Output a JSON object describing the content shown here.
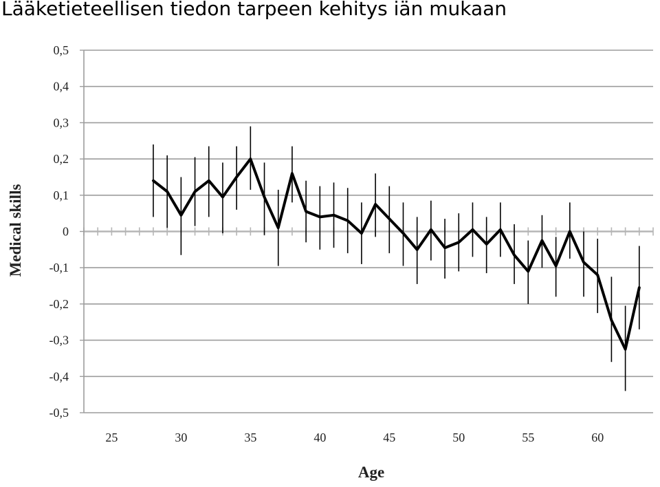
{
  "title": "Lääketieteellisen tiedon tarpeen kehitys iän mukaan",
  "chart_data": {
    "type": "line",
    "xlabel": "Age",
    "ylabel": "Medical skills",
    "xlim": [
      23,
      64
    ],
    "ylim": [
      -0.5,
      0.5
    ],
    "x_ticks": [
      25,
      30,
      35,
      40,
      45,
      50,
      55,
      60
    ],
    "x_tick_labels": [
      "25",
      "30",
      "35",
      "40",
      "45",
      "50",
      "55",
      "60"
    ],
    "y_ticks": [
      0.5,
      0.4,
      0.3,
      0.2,
      0.1,
      0,
      -0.1,
      -0.2,
      -0.3,
      -0.4,
      -0.5
    ],
    "y_tick_labels": [
      "0,5",
      "0,4",
      "0,3",
      "0,2",
      "0,1",
      "0",
      "-0,1",
      "-0,2",
      "-0,3",
      "-0,4",
      "-0,5"
    ],
    "grid": true,
    "error_bars": true,
    "series": [
      {
        "color": "#000000",
        "points": [
          {
            "x": 28,
            "y": 0.14,
            "low": 0.04,
            "high": 0.24
          },
          {
            "x": 29,
            "y": 0.11,
            "low": 0.01,
            "high": 0.21
          },
          {
            "x": 30,
            "y": 0.045,
            "low": -0.065,
            "high": 0.15
          },
          {
            "x": 31,
            "y": 0.11,
            "low": 0.015,
            "high": 0.205
          },
          {
            "x": 32,
            "y": 0.14,
            "low": 0.04,
            "high": 0.235
          },
          {
            "x": 33,
            "y": 0.095,
            "low": -0.005,
            "high": 0.19
          },
          {
            "x": 34,
            "y": 0.15,
            "low": 0.06,
            "high": 0.235
          },
          {
            "x": 35,
            "y": 0.2,
            "low": 0.115,
            "high": 0.29
          },
          {
            "x": 36,
            "y": 0.095,
            "low": -0.01,
            "high": 0.19
          },
          {
            "x": 37,
            "y": 0.01,
            "low": -0.095,
            "high": 0.115
          },
          {
            "x": 38,
            "y": 0.16,
            "low": 0.08,
            "high": 0.235
          },
          {
            "x": 39,
            "y": 0.055,
            "low": -0.03,
            "high": 0.14
          },
          {
            "x": 40,
            "y": 0.04,
            "low": -0.05,
            "high": 0.125
          },
          {
            "x": 41,
            "y": 0.045,
            "low": -0.045,
            "high": 0.135
          },
          {
            "x": 42,
            "y": 0.03,
            "low": -0.06,
            "high": 0.12
          },
          {
            "x": 43,
            "y": -0.005,
            "low": -0.09,
            "high": 0.08
          },
          {
            "x": 44,
            "y": 0.075,
            "low": -0.015,
            "high": 0.16
          },
          {
            "x": 45,
            "y": 0.035,
            "low": -0.06,
            "high": 0.125
          },
          {
            "x": 46,
            "y": -0.005,
            "low": -0.095,
            "high": 0.08
          },
          {
            "x": 47,
            "y": -0.05,
            "low": -0.145,
            "high": 0.04
          },
          {
            "x": 48,
            "y": 0.005,
            "low": -0.08,
            "high": 0.085
          },
          {
            "x": 49,
            "y": -0.045,
            "low": -0.13,
            "high": 0.035
          },
          {
            "x": 50,
            "y": -0.03,
            "low": -0.11,
            "high": 0.05
          },
          {
            "x": 51,
            "y": 0.005,
            "low": -0.07,
            "high": 0.08
          },
          {
            "x": 52,
            "y": -0.035,
            "low": -0.115,
            "high": 0.04
          },
          {
            "x": 53,
            "y": 0.005,
            "low": -0.07,
            "high": 0.08
          },
          {
            "x": 54,
            "y": -0.065,
            "low": -0.145,
            "high": 0.02
          },
          {
            "x": 55,
            "y": -0.11,
            "low": -0.2,
            "high": -0.025
          },
          {
            "x": 56,
            "y": -0.025,
            "low": -0.1,
            "high": 0.045
          },
          {
            "x": 57,
            "y": -0.095,
            "low": -0.18,
            "high": -0.015
          },
          {
            "x": 58,
            "y": 0.0,
            "low": -0.075,
            "high": 0.08
          },
          {
            "x": 59,
            "y": -0.085,
            "low": -0.18,
            "high": 0.0
          },
          {
            "x": 60,
            "y": -0.12,
            "low": -0.225,
            "high": -0.02
          },
          {
            "x": 61,
            "y": -0.245,
            "low": -0.36,
            "high": -0.125
          },
          {
            "x": 62,
            "y": -0.325,
            "low": -0.44,
            "high": -0.205
          },
          {
            "x": 63,
            "y": -0.155,
            "low": -0.27,
            "high": -0.04
          }
        ]
      }
    ]
  }
}
